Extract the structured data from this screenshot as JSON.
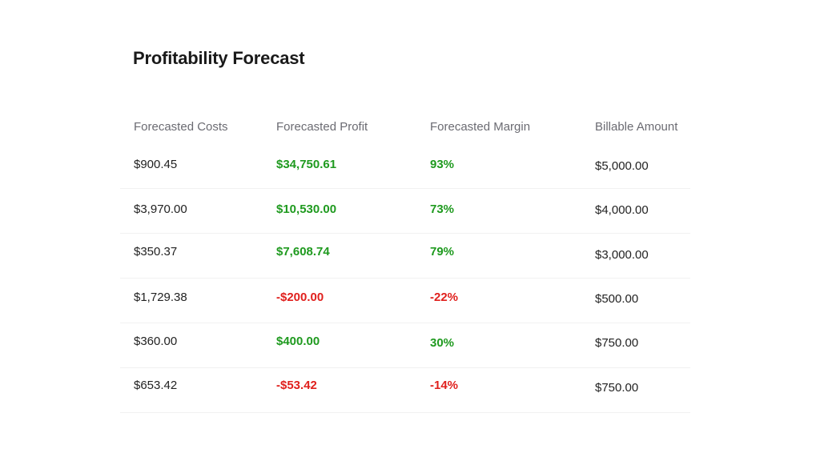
{
  "title": "Profitability Forecast",
  "columns": [
    "Forecasted Costs",
    "Forecasted Profit",
    "Forecasted Margin",
    "Billable Amount"
  ],
  "rows": [
    {
      "costs": "$900.45",
      "profit": "$34,750.61",
      "margin": "93%",
      "billable": "$5,000.00",
      "status": "positive"
    },
    {
      "costs": "$3,970.00",
      "profit": "$10,530.00",
      "margin": "73%",
      "billable": "$4,000.00",
      "status": "positive"
    },
    {
      "costs": "$350.37",
      "profit": "$7,608.74",
      "margin": "79%",
      "billable": "$3,000.00",
      "status": "positive"
    },
    {
      "costs": "$1,729.38",
      "profit": "-$200.00",
      "margin": "-22%",
      "billable": "$500.00",
      "status": "negative"
    },
    {
      "costs": "$360.00",
      "profit": "$400.00",
      "margin": "30%",
      "billable": "$750.00",
      "status": "positive"
    },
    {
      "costs": "$653.42",
      "profit": "-$53.42",
      "margin": "-14%",
      "billable": "$750.00",
      "status": "negative"
    }
  ],
  "colors": {
    "positive": "#1f9a1f",
    "negative": "#e0201d",
    "text": "#222222",
    "header_text": "#6b6b72"
  }
}
